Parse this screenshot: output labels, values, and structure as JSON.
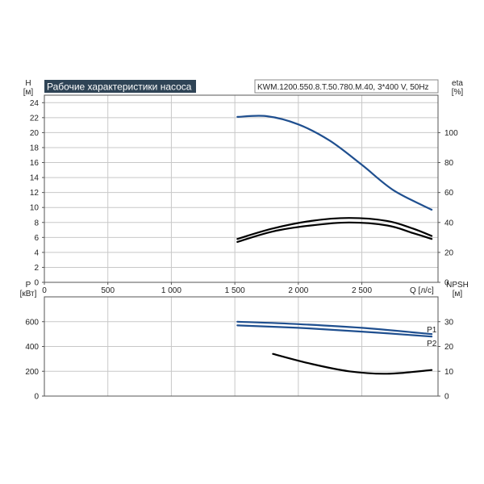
{
  "title": "Рабочие характеристики насоса",
  "model": "KWM.1200.550.8.T.50.780.M.40, 3*400 V, 50Hz",
  "colors": {
    "header_bg": "#2f4456",
    "blue": "#1f4f8f",
    "black": "#000000",
    "grid": "#c8c8c8"
  },
  "chart_data": [
    {
      "type": "line",
      "ylabel": "H",
      "yunit": "[м]",
      "y2label": "eta",
      "y2unit": "[%]",
      "xlabel": "Q",
      "xunit": "[л/с]",
      "xlim": [
        0,
        3100
      ],
      "ylim": [
        0,
        25
      ],
      "y2lim": [
        0,
        125
      ],
      "x_ticks": [
        0,
        500,
        1000,
        1500,
        2000,
        2500
      ],
      "x_tick_labels": [
        "0",
        "500",
        "1 000",
        "1 500",
        "2 000",
        "2 500"
      ],
      "y_ticks": [
        0,
        2,
        4,
        6,
        8,
        10,
        12,
        14,
        16,
        18,
        20,
        22,
        24
      ],
      "y2_ticks": [
        0,
        20,
        40,
        60,
        80,
        100
      ],
      "grid": true,
      "series": [
        {
          "axis": "left",
          "color": "blue",
          "points": [
            [
              1520,
              22.1
            ],
            [
              1750,
              22.2
            ],
            [
              2000,
              21.1
            ],
            [
              2250,
              18.9
            ],
            [
              2500,
              15.7
            ],
            [
              2750,
              12.3
            ],
            [
              3050,
              9.7
            ]
          ]
        },
        {
          "axis": "right",
          "color": "black",
          "points": [
            [
              1520,
              29
            ],
            [
              1800,
              36
            ],
            [
              2100,
              41
            ],
            [
              2400,
              43
            ],
            [
              2700,
              41
            ],
            [
              2900,
              36
            ],
            [
              3050,
              31
            ]
          ]
        },
        {
          "axis": "right",
          "color": "black",
          "points": [
            [
              1520,
              27
            ],
            [
              1800,
              34
            ],
            [
              2100,
              38
            ],
            [
              2400,
              40
            ],
            [
              2700,
              38
            ],
            [
              2900,
              33
            ],
            [
              3050,
              29
            ]
          ]
        }
      ]
    },
    {
      "type": "line",
      "ylabel": "P",
      "yunit": "[кВт]",
      "y2label": "NPSH",
      "y2unit": "[м]",
      "xlim": [
        0,
        3100
      ],
      "ylim": [
        0,
        800
      ],
      "y2lim": [
        0,
        40
      ],
      "y_ticks": [
        0,
        200,
        400,
        600
      ],
      "y2_ticks": [
        0,
        10,
        20,
        30
      ],
      "grid": true,
      "series": [
        {
          "name": "P1",
          "axis": "left",
          "color": "blue",
          "points": [
            [
              1520,
              600
            ],
            [
              2000,
              580
            ],
            [
              2500,
              550
            ],
            [
              3050,
              500
            ]
          ]
        },
        {
          "name": "P2",
          "axis": "left",
          "color": "blue",
          "points": [
            [
              1520,
              570
            ],
            [
              2000,
              550
            ],
            [
              2500,
              520
            ],
            [
              3050,
              480
            ]
          ]
        },
        {
          "axis": "right",
          "color": "black",
          "points": [
            [
              1800,
              17
            ],
            [
              2100,
              13
            ],
            [
              2400,
              10
            ],
            [
              2700,
              9
            ],
            [
              3050,
              10.5
            ]
          ]
        }
      ]
    }
  ]
}
